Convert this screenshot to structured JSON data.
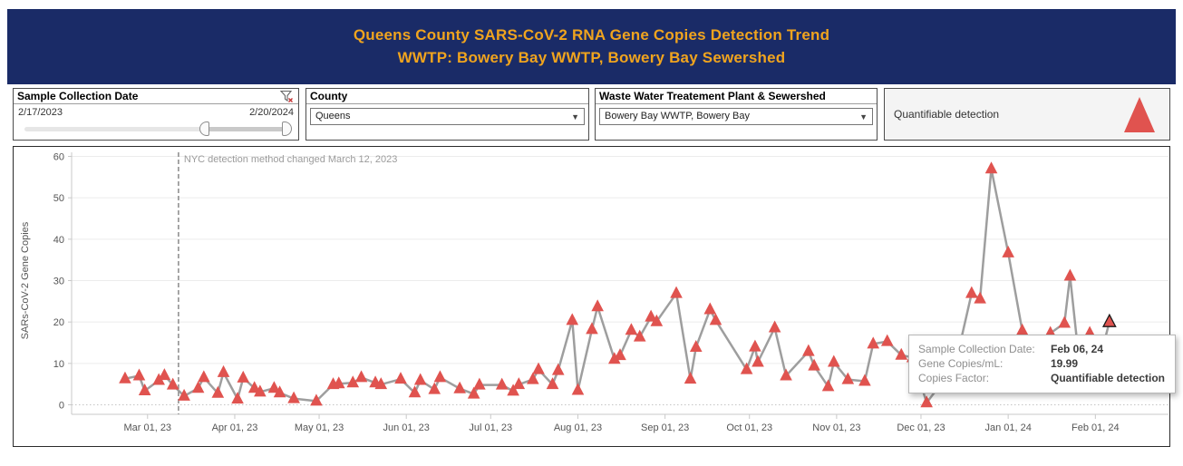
{
  "header": {
    "title_line1": "Queens County SARS-CoV-2 RNA Gene Copies Detection Trend",
    "title_line2": "WWTP: Bowery Bay WWTP, Bowery Bay Sewershed",
    "bg_color": "#1a2b67",
    "text_color": "#f0a41e"
  },
  "filters": {
    "date_filter": {
      "title": "Sample Collection Date",
      "range_start": "2/17/2023",
      "range_end": "2/20/2024"
    },
    "county_filter": {
      "title": "County",
      "selected": "Queens"
    },
    "wwtp_filter": {
      "title": "Waste Water Treatement Plant & Sewershed",
      "selected": "Bowery Bay WWTP, Bowery Bay"
    },
    "legend": {
      "label": "Quantifiable detection",
      "marker_color": "#e0534f"
    }
  },
  "tooltip": {
    "rows": [
      {
        "label": "Sample Collection Date:",
        "value": "Feb 06, 24"
      },
      {
        "label": "Gene Copies/mL:",
        "value": "19.99"
      },
      {
        "label": "Copies Factor:",
        "value": "Quantifiable detection"
      }
    ]
  },
  "chart_data": {
    "type": "line",
    "ylabel": "SARs-CoV-2 Gene Copies",
    "ylim": [
      0,
      60
    ],
    "y_ticks": [
      0,
      10,
      20,
      30,
      40,
      50,
      60
    ],
    "x_domain": [
      "2023-02-02",
      "2024-02-27"
    ],
    "x_ticks": [
      {
        "date": "2023-03-01",
        "label": "Mar 01, 23"
      },
      {
        "date": "2023-04-01",
        "label": "Apr 01, 23"
      },
      {
        "date": "2023-05-01",
        "label": "May 01, 23"
      },
      {
        "date": "2023-06-01",
        "label": "Jun 01, 23"
      },
      {
        "date": "2023-07-01",
        "label": "Jul 01, 23"
      },
      {
        "date": "2023-08-01",
        "label": "Aug 01, 23"
      },
      {
        "date": "2023-09-01",
        "label": "Sep 01, 23"
      },
      {
        "date": "2023-10-01",
        "label": "Oct 01, 23"
      },
      {
        "date": "2023-11-01",
        "label": "Nov 01, 23"
      },
      {
        "date": "2023-12-01",
        "label": "Dec 01, 23"
      },
      {
        "date": "2024-01-01",
        "label": "Jan 01, 24"
      },
      {
        "date": "2024-02-01",
        "label": "Feb 01, 24"
      }
    ],
    "annotation": {
      "text": "NYC detection method changed March 12, 2023",
      "date": "2023-03-12"
    },
    "marker": "triangle-up",
    "marker_color": "#e0534f",
    "line_color": "#9e9e9e",
    "grid": true,
    "points": [
      {
        "date": "2023-02-21",
        "value": 6.3
      },
      {
        "date": "2023-02-26",
        "value": 7.0
      },
      {
        "date": "2023-02-28",
        "value": 3.4
      },
      {
        "date": "2023-03-05",
        "value": 5.9
      },
      {
        "date": "2023-03-07",
        "value": 7.1
      },
      {
        "date": "2023-03-10",
        "value": 4.8
      },
      {
        "date": "2023-03-14",
        "value": 2.1
      },
      {
        "date": "2023-03-19",
        "value": 4.0
      },
      {
        "date": "2023-03-21",
        "value": 6.6
      },
      {
        "date": "2023-03-26",
        "value": 2.8
      },
      {
        "date": "2023-03-28",
        "value": 7.8
      },
      {
        "date": "2023-04-02",
        "value": 1.4
      },
      {
        "date": "2023-04-04",
        "value": 6.5
      },
      {
        "date": "2023-04-08",
        "value": 4.0
      },
      {
        "date": "2023-04-10",
        "value": 3.1
      },
      {
        "date": "2023-04-15",
        "value": 4.0
      },
      {
        "date": "2023-04-17",
        "value": 2.9
      },
      {
        "date": "2023-04-22",
        "value": 1.5
      },
      {
        "date": "2023-04-30",
        "value": 0.9
      },
      {
        "date": "2023-05-06",
        "value": 4.9
      },
      {
        "date": "2023-05-08",
        "value": 5.1
      },
      {
        "date": "2023-05-13",
        "value": 5.3
      },
      {
        "date": "2023-05-16",
        "value": 6.6
      },
      {
        "date": "2023-05-21",
        "value": 5.3
      },
      {
        "date": "2023-05-23",
        "value": 4.9
      },
      {
        "date": "2023-05-30",
        "value": 6.2
      },
      {
        "date": "2023-06-04",
        "value": 2.9
      },
      {
        "date": "2023-06-06",
        "value": 5.9
      },
      {
        "date": "2023-06-11",
        "value": 3.7
      },
      {
        "date": "2023-06-13",
        "value": 6.6
      },
      {
        "date": "2023-06-20",
        "value": 3.9
      },
      {
        "date": "2023-06-25",
        "value": 2.6
      },
      {
        "date": "2023-06-27",
        "value": 4.8
      },
      {
        "date": "2023-07-05",
        "value": 4.8
      },
      {
        "date": "2023-07-09",
        "value": 3.3
      },
      {
        "date": "2023-07-11",
        "value": 4.9
      },
      {
        "date": "2023-07-16",
        "value": 6.1
      },
      {
        "date": "2023-07-18",
        "value": 8.5
      },
      {
        "date": "2023-07-23",
        "value": 4.9
      },
      {
        "date": "2023-07-25",
        "value": 8.3
      },
      {
        "date": "2023-07-30",
        "value": 20.4
      },
      {
        "date": "2023-08-01",
        "value": 3.5
      },
      {
        "date": "2023-08-06",
        "value": 18.2
      },
      {
        "date": "2023-08-08",
        "value": 23.7
      },
      {
        "date": "2023-08-14",
        "value": 11.0
      },
      {
        "date": "2023-08-16",
        "value": 11.9
      },
      {
        "date": "2023-08-20",
        "value": 18.0
      },
      {
        "date": "2023-08-23",
        "value": 16.4
      },
      {
        "date": "2023-08-27",
        "value": 21.2
      },
      {
        "date": "2023-08-29",
        "value": 20.1
      },
      {
        "date": "2023-09-05",
        "value": 26.9
      },
      {
        "date": "2023-09-10",
        "value": 6.2
      },
      {
        "date": "2023-09-12",
        "value": 13.9
      },
      {
        "date": "2023-09-17",
        "value": 23.0
      },
      {
        "date": "2023-09-19",
        "value": 20.4
      },
      {
        "date": "2023-09-30",
        "value": 8.5
      },
      {
        "date": "2023-10-03",
        "value": 14.0
      },
      {
        "date": "2023-10-04",
        "value": 10.3
      },
      {
        "date": "2023-10-10",
        "value": 18.6
      },
      {
        "date": "2023-10-14",
        "value": 7.0
      },
      {
        "date": "2023-10-22",
        "value": 12.9
      },
      {
        "date": "2023-10-24",
        "value": 9.4
      },
      {
        "date": "2023-10-29",
        "value": 4.4
      },
      {
        "date": "2023-10-31",
        "value": 10.3
      },
      {
        "date": "2023-11-05",
        "value": 6.1
      },
      {
        "date": "2023-11-11",
        "value": 5.7
      },
      {
        "date": "2023-11-14",
        "value": 14.7
      },
      {
        "date": "2023-11-19",
        "value": 15.3
      },
      {
        "date": "2023-11-24",
        "value": 12.0
      },
      {
        "date": "2023-11-28",
        "value": 11.4
      },
      {
        "date": "2023-12-03",
        "value": 0.5
      },
      {
        "date": "2023-12-08",
        "value": 5.0
      },
      {
        "date": "2023-12-12",
        "value": 9.5
      },
      {
        "date": "2023-12-15",
        "value": 15.0
      },
      {
        "date": "2023-12-19",
        "value": 26.9
      },
      {
        "date": "2023-12-22",
        "value": 25.6
      },
      {
        "date": "2023-12-26",
        "value": 57.0
      },
      {
        "date": "2024-01-01",
        "value": 36.7
      },
      {
        "date": "2024-01-06",
        "value": 17.9
      },
      {
        "date": "2024-01-10",
        "value": 12.5
      },
      {
        "date": "2024-01-16",
        "value": 17.3
      },
      {
        "date": "2024-01-21",
        "value": 19.7
      },
      {
        "date": "2024-01-23",
        "value": 31.1
      },
      {
        "date": "2024-01-26",
        "value": 12.0
      },
      {
        "date": "2024-01-30",
        "value": 17.3
      },
      {
        "date": "2024-02-02",
        "value": 9.5
      },
      {
        "date": "2024-02-06",
        "value": 19.99,
        "highlight": true
      }
    ]
  }
}
